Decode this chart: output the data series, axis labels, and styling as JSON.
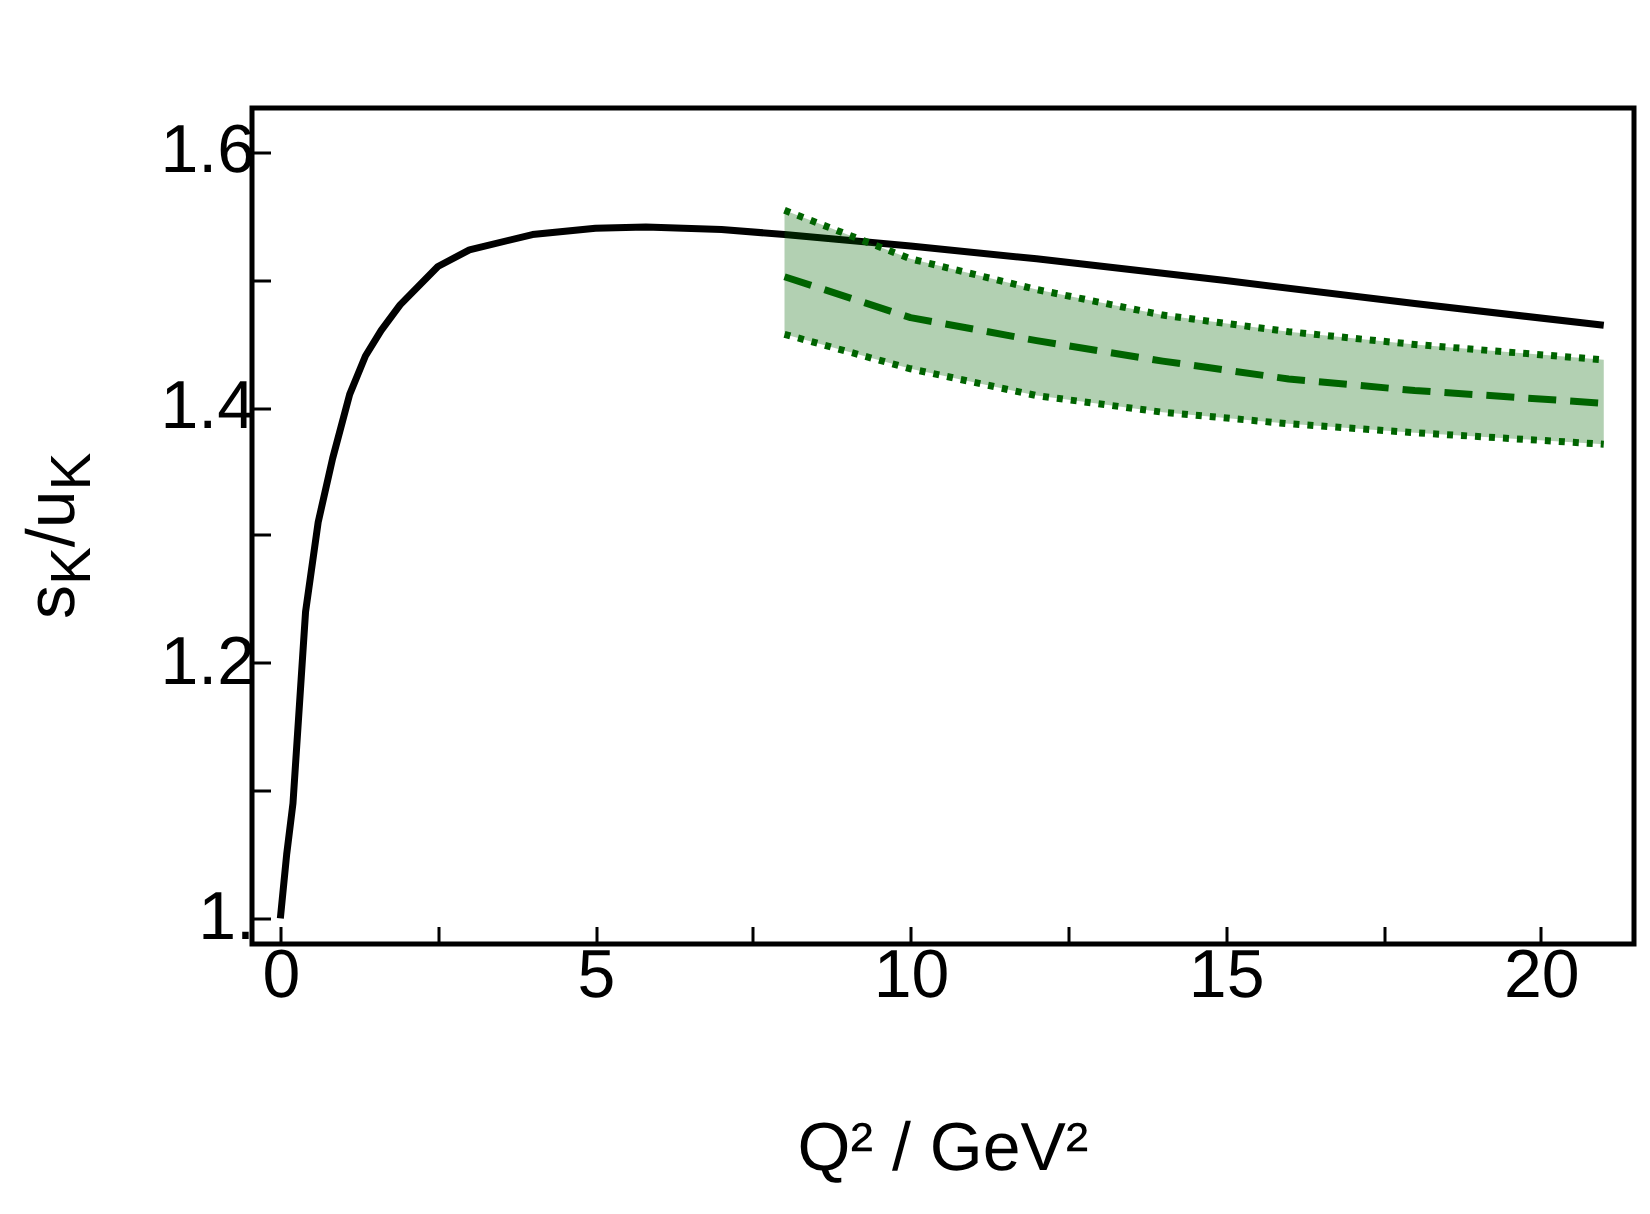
{
  "chart_data": {
    "type": "line",
    "xlabel": "Q² / GeV²",
    "ylabel": "s$_{K}$/u$_{K}$",
    "xlim": [
      -0.45,
      21.48
    ],
    "ylim": [
      0.98,
      1.634
    ],
    "xticks": [
      0,
      {
        "value": 2.5,
        "label": null
      },
      5,
      {
        "value": 7.5,
        "label": null
      },
      10,
      {
        "value": 12.5,
        "label": null
      },
      15,
      {
        "value": 17.5,
        "label": null
      },
      20
    ],
    "yticks": [
      {
        "value": 1,
        "label": "1."
      },
      {
        "value": 1.1,
        "label": null
      },
      1.2,
      {
        "value": 1.3,
        "label": null
      },
      1.4,
      {
        "value": 1.5,
        "label": null
      },
      1.6
    ],
    "grid": false,
    "marker": "none",
    "series": [
      {
        "color": "#000000",
        "line_style": "solid",
        "x": [
          0,
          0.1,
          0.2,
          0.4,
          0.6,
          0.83,
          1.1,
          1.35,
          1.6,
          1.9,
          2.5,
          3,
          4,
          5,
          5.8,
          7,
          8,
          10,
          12,
          15,
          18,
          21
        ],
        "values": [
          1.0,
          1.05,
          1.09,
          1.24,
          1.31,
          1.36,
          1.41,
          1.44,
          1.46,
          1.48,
          1.51,
          1.523,
          1.535,
          1.54,
          1.541,
          1.539,
          1.535,
          1.526,
          1.516,
          1.499,
          1.481,
          1.464
        ]
      },
      {
        "color": "#006400",
        "line_style": "dashed",
        "x": [
          8,
          10,
          12,
          14,
          16,
          18,
          21
        ],
        "values": [
          1.502,
          1.47,
          1.452,
          1.436,
          1.422,
          1.413,
          1.403
        ],
        "lower": [
          1.457,
          1.43,
          1.409,
          1.396,
          1.387,
          1.38,
          1.371
        ],
        "upper": [
          1.554,
          1.516,
          1.492,
          1.472,
          1.459,
          1.449,
          1.437
        ]
      },
      {
        "color": "#006400",
        "line_style": "dotted",
        "x": [
          8,
          10,
          12,
          14,
          16,
          18,
          21
        ],
        "values": [
          1.457,
          1.43,
          1.409,
          1.396,
          1.387,
          1.38,
          1.371
        ]
      },
      {
        "color": "#006400",
        "line_style": "dotted",
        "x": [
          8,
          10,
          12,
          14,
          16,
          18,
          21
        ],
        "values": [
          1.554,
          1.516,
          1.492,
          1.472,
          1.459,
          1.449,
          1.437
        ]
      }
    ]
  }
}
